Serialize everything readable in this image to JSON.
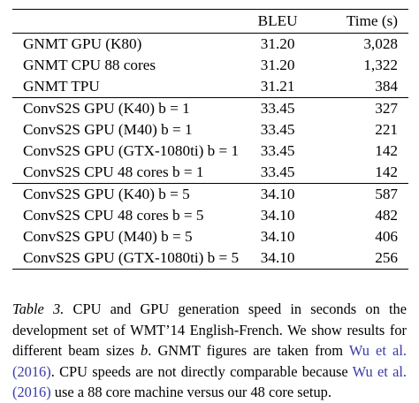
{
  "table": {
    "headers": {
      "model": "",
      "bleu": "BLEU",
      "time": "Time (s)"
    },
    "groups": [
      [
        {
          "model": "GNMT GPU (K80)",
          "bleu": "31.20",
          "time": "3,028"
        },
        {
          "model": "GNMT CPU 88 cores",
          "bleu": "31.20",
          "time": "1,322"
        },
        {
          "model": "GNMT TPU",
          "bleu": "31.21",
          "time": "384"
        }
      ],
      [
        {
          "model": "ConvS2S GPU (K40) b = 1",
          "bleu": "33.45",
          "time": "327"
        },
        {
          "model": "ConvS2S GPU (M40) b = 1",
          "bleu": "33.45",
          "time": "221"
        },
        {
          "model": "ConvS2S GPU (GTX-1080ti) b = 1",
          "bleu": "33.45",
          "time": "142"
        },
        {
          "model": "ConvS2S CPU 48 cores b = 1",
          "bleu": "33.45",
          "time": "142"
        }
      ],
      [
        {
          "model": "ConvS2S GPU (K40) b = 5",
          "bleu": "34.10",
          "time": "587"
        },
        {
          "model": "ConvS2S CPU 48 cores b = 5",
          "bleu": "34.10",
          "time": "482"
        },
        {
          "model": "ConvS2S GPU (M40) b = 5",
          "bleu": "34.10",
          "time": "406"
        },
        {
          "model": "ConvS2S GPU (GTX-1080ti) b = 5",
          "bleu": "34.10",
          "time": "256"
        }
      ]
    ]
  },
  "caption": {
    "label": "Table 3.",
    "text_1": " CPU and GPU generation speed in seconds on the development set of WMT’14 English-French. We show results for different beam sizes ",
    "beam_var": "b",
    "text_2": ". GNMT figures are taken from ",
    "cite_1": "Wu et al. (2016)",
    "text_3": ". CPU speeds are not directly comparable because ",
    "cite_2": "Wu et al. (2016)",
    "text_4": " use a 88 core machine versus our 48 core setup."
  }
}
